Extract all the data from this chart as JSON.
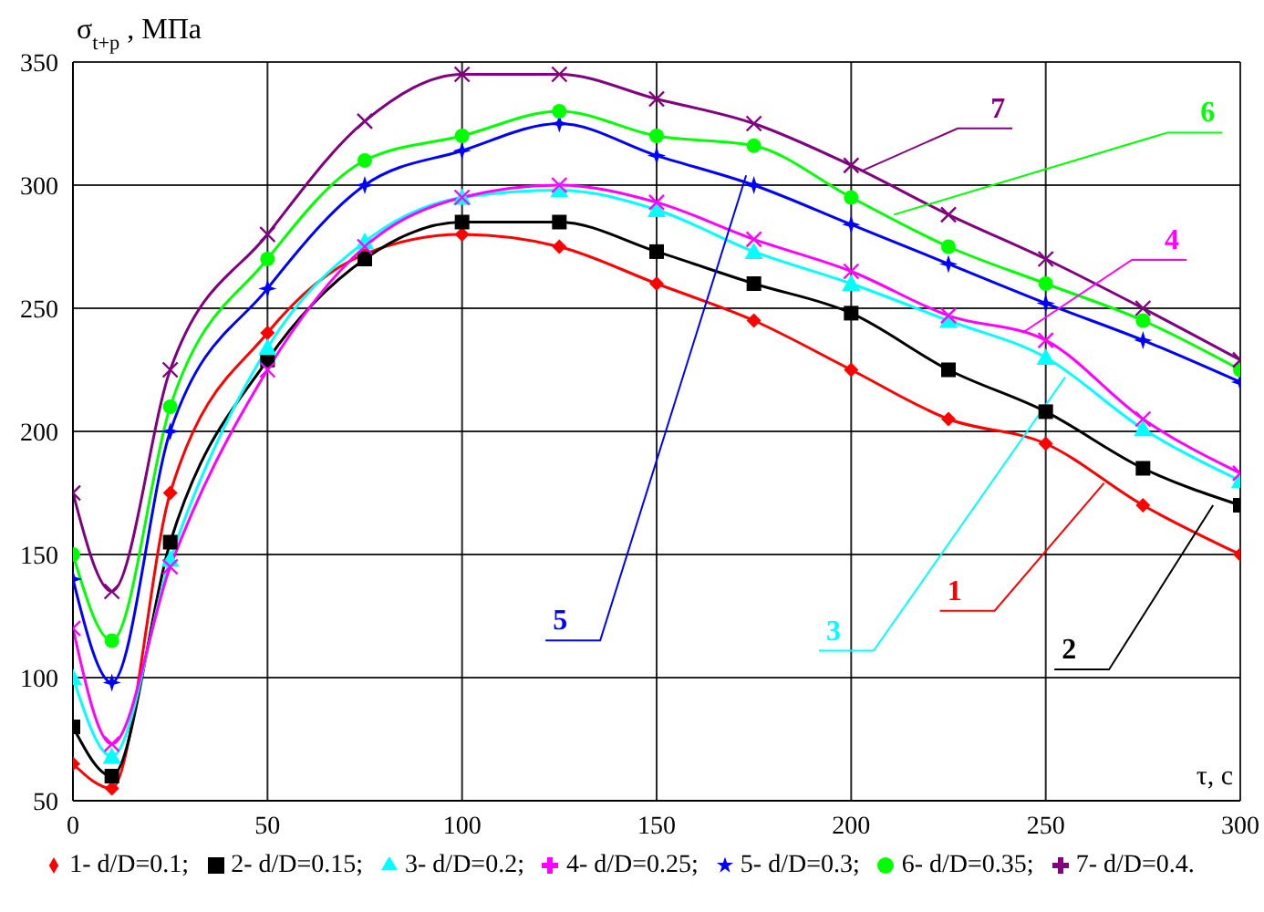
{
  "chart_data": {
    "type": "line",
    "ylabel": "σ$_{t+p}$, МПа",
    "xlabel": "τ, с",
    "x": [
      0,
      10,
      25,
      50,
      75,
      100,
      125,
      150,
      175,
      200,
      225,
      250,
      275,
      300
    ],
    "series": [
      {
        "name": "1- d/D=0.1;",
        "color": "#ff0000",
        "marker": "diamond",
        "values": [
          65,
          55,
          175,
          240,
          272,
          280,
          275,
          260,
          245,
          225,
          205,
          195,
          170,
          150
        ]
      },
      {
        "name": "2- d/D=0.15;",
        "color": "#000000",
        "marker": "square",
        "values": [
          80,
          60,
          155,
          229,
          270,
          285,
          285,
          273,
          260,
          248,
          225,
          208,
          185,
          170
        ]
      },
      {
        "name": "3- d/D=0.2;",
        "color": "#00ffff",
        "marker": "triangle",
        "values": [
          100,
          68,
          148,
          234,
          277,
          295,
          298,
          290,
          273,
          260,
          245,
          230,
          201,
          180
        ]
      },
      {
        "name": "4- d/D=0.25;",
        "color": "#ff00ff",
        "marker": "cross",
        "values": [
          120,
          73,
          145,
          225,
          275,
          295,
          300,
          293,
          278,
          265,
          247,
          237,
          205,
          183
        ]
      },
      {
        "name": "5- d/D=0.3;",
        "color": "#0000ff",
        "marker": "star",
        "values": [
          140,
          98,
          200,
          258,
          300,
          314,
          325,
          312,
          300,
          284,
          268,
          252,
          237,
          220
        ]
      },
      {
        "name": "6- d/D=0.35;",
        "color": "#00ff00",
        "marker": "circle",
        "values": [
          150,
          115,
          210,
          270,
          310,
          320,
          330,
          320,
          316,
          295,
          275,
          260,
          245,
          225
        ]
      },
      {
        "name": "7- d/D=0.4.",
        "color": "#800080",
        "marker": "cross",
        "values": [
          175,
          135,
          225,
          280,
          326,
          345,
          345,
          335,
          325,
          308,
          288,
          270,
          250,
          229
        ]
      }
    ],
    "annotations": [
      {
        "text": "1",
        "x": 265,
        "y": 179
      },
      {
        "text": "2",
        "x": 293,
        "y": 170
      },
      {
        "text": "3",
        "x": 255,
        "y": 222
      },
      {
        "text": "4",
        "x": 244,
        "y": 240
      },
      {
        "text": "5",
        "x": 173,
        "y": 304
      },
      {
        "text": "6",
        "x": 211,
        "y": 288
      },
      {
        "text": "7",
        "x": 203,
        "y": 306
      }
    ],
    "xlim": [
      0,
      300
    ],
    "xticks": [
      0,
      50,
      100,
      150,
      200,
      250,
      300
    ],
    "ylim": [
      50,
      350
    ],
    "yticks": [
      50,
      100,
      150,
      200,
      250,
      300,
      350
    ],
    "grid": true,
    "legend": "bottom",
    "line_style": "solid"
  }
}
